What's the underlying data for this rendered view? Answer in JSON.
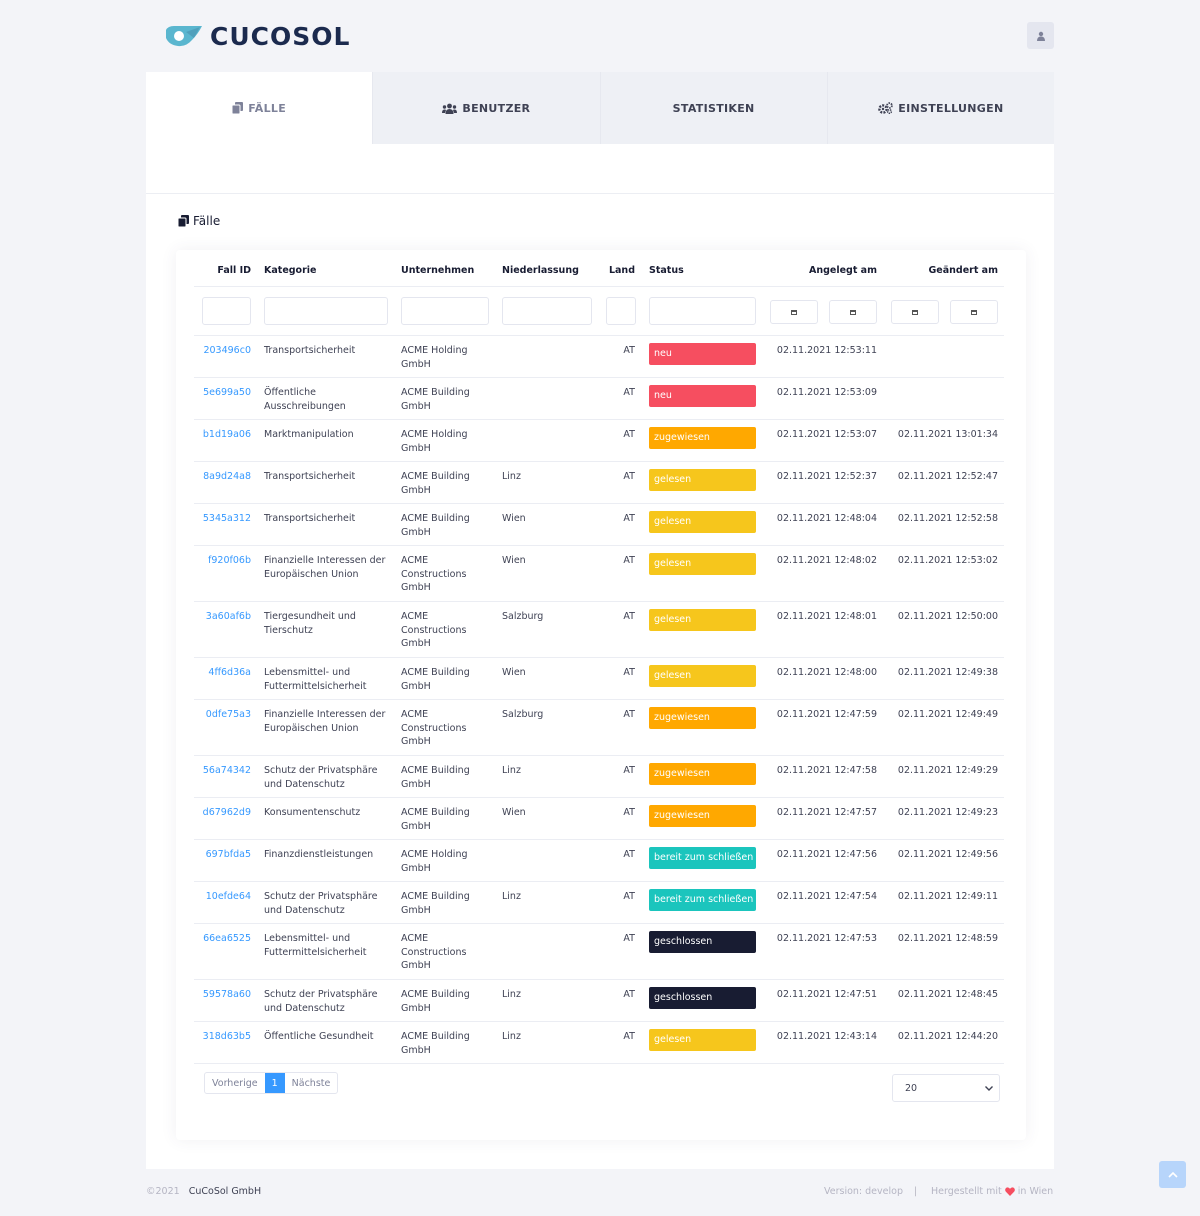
{
  "brand": {
    "name": "CUCOSOL"
  },
  "tabs": [
    {
      "label": "FÄLLE",
      "icon": "copy-icon",
      "active": true
    },
    {
      "label": "BENUTZER",
      "icon": "users-icon",
      "active": false
    },
    {
      "label": "STATISTIKEN",
      "icon": "",
      "active": false
    },
    {
      "label": "EINSTELLUNGEN",
      "icon": "cogs-icon",
      "active": false
    }
  ],
  "section": {
    "title": "Fälle"
  },
  "table": {
    "headers": {
      "id": "Fall ID",
      "kategorie": "Kategorie",
      "unternehmen": "Unternehmen",
      "niederlassung": "Niederlassung",
      "land": "Land",
      "status": "Status",
      "angelegt": "Angelegt am",
      "geaendert": "Geändert am"
    },
    "status_colors": {
      "neu": "#f64e60",
      "zugewiesen": "#ffa800",
      "gelesen": "#f6c61c",
      "bereit zum schließen": "#1bc5bd",
      "geschlossen": "#181c32"
    },
    "rows": [
      {
        "id": "203496c0",
        "kategorie": "Transportsicherheit",
        "unternehmen": "ACME Holding GmbH",
        "niederlassung": "",
        "land": "AT",
        "status": "neu",
        "angelegt": "02.11.2021 12:53:11",
        "geaendert": ""
      },
      {
        "id": "5e699a50",
        "kategorie": "Öffentliche Ausschreibungen",
        "unternehmen": "ACME Building GmbH",
        "niederlassung": "",
        "land": "AT",
        "status": "neu",
        "angelegt": "02.11.2021 12:53:09",
        "geaendert": ""
      },
      {
        "id": "b1d19a06",
        "kategorie": "Marktmanipulation",
        "unternehmen": "ACME Holding GmbH",
        "niederlassung": "",
        "land": "AT",
        "status": "zugewiesen",
        "angelegt": "02.11.2021 12:53:07",
        "geaendert": "02.11.2021 13:01:34"
      },
      {
        "id": "8a9d24a8",
        "kategorie": "Transportsicherheit",
        "unternehmen": "ACME Building GmbH",
        "niederlassung": "Linz",
        "land": "AT",
        "status": "gelesen",
        "angelegt": "02.11.2021 12:52:37",
        "geaendert": "02.11.2021 12:52:47"
      },
      {
        "id": "5345a312",
        "kategorie": "Transportsicherheit",
        "unternehmen": "ACME Building GmbH",
        "niederlassung": "Wien",
        "land": "AT",
        "status": "gelesen",
        "angelegt": "02.11.2021 12:48:04",
        "geaendert": "02.11.2021 12:52:58"
      },
      {
        "id": "f920f06b",
        "kategorie": "Finanzielle Interessen der Europäischen Union",
        "unternehmen": "ACME Constructions GmbH",
        "niederlassung": "Wien",
        "land": "AT",
        "status": "gelesen",
        "angelegt": "02.11.2021 12:48:02",
        "geaendert": "02.11.2021 12:53:02"
      },
      {
        "id": "3a60af6b",
        "kategorie": "Tiergesundheit und Tierschutz",
        "unternehmen": "ACME Constructions GmbH",
        "niederlassung": "Salzburg",
        "land": "AT",
        "status": "gelesen",
        "angelegt": "02.11.2021 12:48:01",
        "geaendert": "02.11.2021 12:50:00"
      },
      {
        "id": "4ff6d36a",
        "kategorie": "Lebensmittel- und Futtermittelsicherheit",
        "unternehmen": "ACME Building GmbH",
        "niederlassung": "Wien",
        "land": "AT",
        "status": "gelesen",
        "angelegt": "02.11.2021 12:48:00",
        "geaendert": "02.11.2021 12:49:38"
      },
      {
        "id": "0dfe75a3",
        "kategorie": "Finanzielle Interessen der Europäischen Union",
        "unternehmen": "ACME Constructions GmbH",
        "niederlassung": "Salzburg",
        "land": "AT",
        "status": "zugewiesen",
        "angelegt": "02.11.2021 12:47:59",
        "geaendert": "02.11.2021 12:49:49"
      },
      {
        "id": "56a74342",
        "kategorie": "Schutz der Privatsphäre und Datenschutz",
        "unternehmen": "ACME Building GmbH",
        "niederlassung": "Linz",
        "land": "AT",
        "status": "zugewiesen",
        "angelegt": "02.11.2021 12:47:58",
        "geaendert": "02.11.2021 12:49:29"
      },
      {
        "id": "d67962d9",
        "kategorie": "Konsumentenschutz",
        "unternehmen": "ACME Building GmbH",
        "niederlassung": "Wien",
        "land": "AT",
        "status": "zugewiesen",
        "angelegt": "02.11.2021 12:47:57",
        "geaendert": "02.11.2021 12:49:23"
      },
      {
        "id": "697bfda5",
        "kategorie": "Finanzdienstleistungen",
        "unternehmen": "ACME Holding GmbH",
        "niederlassung": "",
        "land": "AT",
        "status": "bereit zum schließen",
        "angelegt": "02.11.2021 12:47:56",
        "geaendert": "02.11.2021 12:49:56"
      },
      {
        "id": "10efde64",
        "kategorie": "Schutz der Privatsphäre und Datenschutz",
        "unternehmen": "ACME Building GmbH",
        "niederlassung": "Linz",
        "land": "AT",
        "status": "bereit zum schließen",
        "angelegt": "02.11.2021 12:47:54",
        "geaendert": "02.11.2021 12:49:11"
      },
      {
        "id": "66ea6525",
        "kategorie": "Lebensmittel- und Futtermittelsicherheit",
        "unternehmen": "ACME Constructions GmbH",
        "niederlassung": "",
        "land": "AT",
        "status": "geschlossen",
        "angelegt": "02.11.2021 12:47:53",
        "geaendert": "02.11.2021 12:48:59"
      },
      {
        "id": "59578a60",
        "kategorie": "Schutz der Privatsphäre und Datenschutz",
        "unternehmen": "ACME Building GmbH",
        "niederlassung": "Linz",
        "land": "AT",
        "status": "geschlossen",
        "angelegt": "02.11.2021 12:47:51",
        "geaendert": "02.11.2021 12:48:45"
      },
      {
        "id": "318d63b5",
        "kategorie": "Öffentliche Gesundheit",
        "unternehmen": "ACME Building GmbH",
        "niederlassung": "Linz",
        "land": "AT",
        "status": "gelesen",
        "angelegt": "02.11.2021 12:43:14",
        "geaendert": "02.11.2021 12:44:20"
      }
    ]
  },
  "pagination": {
    "prev": "Vorherige",
    "current": "1",
    "next": "Nächste",
    "page_size": "20"
  },
  "footer": {
    "year": "©2021",
    "company": "CuCoSol GmbH",
    "version": "Version: develop",
    "separator": "|",
    "made_prefix": "Hergestellt mit",
    "made_suffix": "in Wien"
  }
}
